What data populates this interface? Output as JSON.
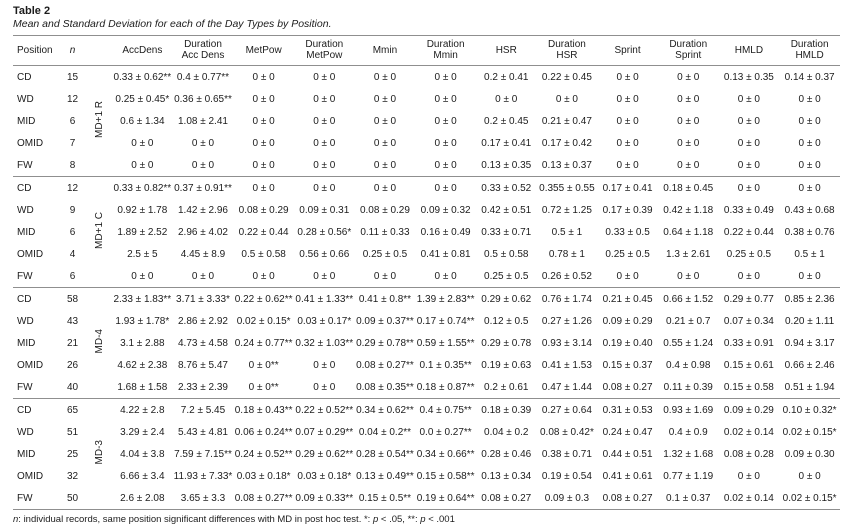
{
  "page": {
    "label": "Table 2",
    "caption": "Mean and Standard Deviation for each of the Day Types by Position."
  },
  "footnote": {
    "n": "n",
    "part1": ": individual records, same position significant differences with MD in post hoc test. *: ",
    "p1": "p",
    "part2": " < .05, **: ",
    "p2": "p",
    "part3": " < .001"
  },
  "table": {
    "columns": [
      "Position",
      "n",
      "",
      "AccDens",
      "Duration\nAcc Dens",
      "MetPow",
      "Duration\nMetPow",
      "Mmin",
      "Duration\nMmin",
      "HSR",
      "Duration\nHSR",
      "Sprint",
      "Duration\nSprint",
      "HMLD",
      "Duration\nHMLD"
    ],
    "groups": [
      {
        "name": "MD+1 R",
        "rows": [
          {
            "position": "CD",
            "n": "15",
            "values": [
              "0.33 ± 0.62**",
              "0.4 ± 0.77**",
              "0 ± 0",
              "0 ± 0",
              "0 ± 0",
              "0 ± 0",
              "0.2 ± 0.41",
              "0.22 ± 0.45",
              "0 ± 0",
              "0 ± 0",
              "0.13 ± 0.35",
              "0.14 ± 0.37"
            ]
          },
          {
            "position": "WD",
            "n": "12",
            "values": [
              "0.25 ± 0.45*",
              "0.36 ± 0.65**",
              "0 ± 0",
              "0 ± 0",
              "0 ± 0",
              "0 ± 0",
              "0 ± 0",
              "0 ± 0",
              "0 ± 0",
              "0 ± 0",
              "0 ± 0",
              "0 ± 0"
            ]
          },
          {
            "position": "MID",
            "n": "6",
            "values": [
              "0.6 ± 1.34",
              "1.08 ± 2.41",
              "0 ± 0",
              "0 ± 0",
              "0 ± 0",
              "0 ± 0",
              "0.2 ± 0.45",
              "0.21 ± 0.47",
              "0 ± 0",
              "0 ± 0",
              "0 ± 0",
              "0 ± 0"
            ]
          },
          {
            "position": "OMID",
            "n": "7",
            "values": [
              "0 ± 0",
              "0 ± 0",
              "0 ± 0",
              "0 ± 0",
              "0 ± 0",
              "0 ± 0",
              "0.17 ± 0.41",
              "0.17 ± 0.42",
              "0 ± 0",
              "0 ± 0",
              "0 ± 0",
              "0 ± 0"
            ]
          },
          {
            "position": "FW",
            "n": "8",
            "values": [
              "0 ± 0",
              "0 ± 0",
              "0 ± 0",
              "0 ± 0",
              "0 ± 0",
              "0 ± 0",
              "0.13 ± 0.35",
              "0.13 ± 0.37",
              "0 ± 0",
              "0 ± 0",
              "0 ± 0",
              "0 ± 0"
            ]
          }
        ]
      },
      {
        "name": "MD+1 C",
        "rows": [
          {
            "position": "CD",
            "n": "12",
            "values": [
              "0.33 ± 0.82**",
              "0.37 ± 0.91**",
              "0 ± 0",
              "0 ± 0",
              "0 ± 0",
              "0 ± 0",
              "0.33 ± 0.52",
              "0.355 ± 0.55",
              "0.17 ± 0.41",
              "0.18 ± 0.45",
              "0 ± 0",
              "0 ± 0"
            ]
          },
          {
            "position": "WD",
            "n": "9",
            "values": [
              "0.92 ± 1.78",
              "1.42 ± 2.96",
              "0.08 ± 0.29",
              "0.09 ± 0.31",
              "0.08 ± 0.29",
              "0.09 ± 0.32",
              "0.42 ± 0.51",
              "0.72 ± 1.25",
              "0.17 ± 0.39",
              "0.42 ± 1.18",
              "0.33 ± 0.49",
              "0.43 ± 0.68"
            ]
          },
          {
            "position": "MID",
            "n": "6",
            "values": [
              "1.89 ± 2.52",
              "2.96 ± 4.02",
              "0.22 ± 0.44",
              "0.28 ± 0.56*",
              "0.11 ± 0.33",
              "0.16 ± 0.49",
              "0.33 ± 0.71",
              "0.5 ± 1",
              "0.33 ± 0.5",
              "0.64 ± 1.18",
              "0.22 ± 0.44",
              "0.38 ± 0.76"
            ]
          },
          {
            "position": "OMID",
            "n": "4",
            "values": [
              "2.5 ± 5",
              "4.45 ± 8.9",
              "0.5 ± 0.58",
              "0.56 ± 0.66",
              "0.25 ± 0.5",
              "0.41 ± 0.81",
              "0.5 ± 0.58",
              "0.78 ± 1",
              "0.25 ± 0.5",
              "1.3 ± 2.61",
              "0.25 ± 0.5",
              "0.5 ± 1"
            ]
          },
          {
            "position": "FW",
            "n": "6",
            "values": [
              "0 ± 0",
              "0 ± 0",
              "0 ± 0",
              "0 ± 0",
              "0 ± 0",
              "0 ± 0",
              "0.25 ± 0.5",
              "0.26 ± 0.52",
              "0 ± 0",
              "0 ± 0",
              "0 ± 0",
              "0 ± 0"
            ]
          }
        ]
      },
      {
        "name": "MD-4",
        "rows": [
          {
            "position": "CD",
            "n": "58",
            "values": [
              "2.33 ± 1.83**",
              "3.71 ± 3.33*",
              "0.22 ± 0.62**",
              "0.41 ± 1.33**",
              "0.41 ± 0.8**",
              "1.39 ± 2.83**",
              "0.29 ± 0.62",
              "0.76 ± 1.74",
              "0.21 ± 0.45",
              "0.66 ± 1.52",
              "0.29 ± 0.77",
              "0.85 ± 2.36"
            ]
          },
          {
            "position": "WD",
            "n": "43",
            "values": [
              "1.93 ± 1.78*",
              "2.86 ± 2.92",
              "0.02 ± 0.15*",
              "0.03 ± 0.17*",
              "0.09 ± 0.37**",
              "0.17 ± 0.74**",
              "0.12 ± 0.5",
              "0.27 ± 1.26",
              "0.09 ± 0.29",
              "0.21 ± 0.7",
              "0.07 ± 0.34",
              "0.20 ± 1.11"
            ]
          },
          {
            "position": "MID",
            "n": "21",
            "values": [
              "3.1 ± 2.88",
              "4.73 ± 4.58",
              "0.24 ± 0.77**",
              "0.32 ± 1.03**",
              "0.29 ± 0.78**",
              "0.59 ± 1.55**",
              "0.29 ± 0.78",
              "0.93 ± 3.14",
              "0.19 ± 0.40",
              "0.55 ± 1.24",
              "0.33 ± 0.91",
              "0.94 ± 3.17"
            ]
          },
          {
            "position": "OMID",
            "n": "26",
            "values": [
              "4.62 ± 2.38",
              "8.76 ± 5.47",
              "0 ± 0**",
              "0 ± 0",
              "0.08 ± 0.27**",
              "0.1 ± 0.35**",
              "0.19 ± 0.63",
              "0.41 ± 1.53",
              "0.15 ± 0.37",
              "0.4 ± 0.98",
              "0.15 ± 0.61",
              "0.66 ± 2.46"
            ]
          },
          {
            "position": "FW",
            "n": "40",
            "values": [
              "1.68 ± 1.58",
              "2.33 ± 2.39",
              "0 ± 0**",
              "0 ± 0",
              "0.08 ± 0.35**",
              "0.18 ± 0.87**",
              "0.2 ± 0.61",
              "0.47 ± 1.44",
              "0.08 ± 0.27",
              "0.11 ± 0.39",
              "0.15 ± 0.58",
              "0.51 ± 1.94"
            ]
          }
        ]
      },
      {
        "name": "MD-3",
        "rows": [
          {
            "position": "CD",
            "n": "65",
            "values": [
              "4.22 ± 2.8",
              "7.2 ± 5.45",
              "0.18 ± 0.43**",
              "0.22 ± 0.52**",
              "0.34 ± 0.62**",
              "0.4 ± 0.75**",
              "0.18 ± 0.39",
              "0.27 ± 0.64",
              "0.31 ± 0.53",
              "0.93 ± 1.69",
              "0.09 ± 0.29",
              "0.10 ± 0.32*"
            ]
          },
          {
            "position": "WD",
            "n": "51",
            "values": [
              "3.29 ± 2.4",
              "5.43 ± 4.81",
              "0.06 ± 0.24**",
              "0.07 ± 0.29**",
              "0.04 ± 0.2**",
              "0.0 ± 0.27**",
              "0.04 ± 0.2",
              "0.08 ± 0.42*",
              "0.24 ± 0.47",
              "0.4 ± 0.9",
              "0.02 ± 0.14",
              "0.02 ± 0.15*"
            ]
          },
          {
            "position": "MID",
            "n": "25",
            "values": [
              "4.04 ± 3.8",
              "7.59 ± 7.15**",
              "0.24 ± 0.52**",
              "0.29 ± 0.62**",
              "0.28 ± 0.54**",
              "0.34 ± 0.66**",
              "0.28 ± 0.46",
              "0.38 ± 0.71",
              "0.44 ± 0.51",
              "1.32 ± 1.68",
              "0.08 ± 0.28",
              "0.09 ± 0.30"
            ]
          },
          {
            "position": "OMID",
            "n": "32",
            "values": [
              "6.66 ± 3.4",
              "11.93 ± 7.33*",
              "0.03 ± 0.18*",
              "0.03 ± 0.18*",
              "0.13 ± 0.49**",
              "0.15 ± 0.58**",
              "0.13 ± 0.34",
              "0.19 ± 0.54",
              "0.41 ± 0.61",
              "0.77 ± 1.19",
              "0 ± 0",
              "0 ± 0"
            ]
          },
          {
            "position": "FW",
            "n": "50",
            "values": [
              "2.6 ± 2.08",
              "3.65 ± 3.3",
              "0.08 ± 0.27**",
              "0.09 ± 0.33**",
              "0.15 ± 0.5**",
              "0.19 ± 0.64**",
              "0.08 ± 0.27",
              "0.09 ± 0.3",
              "0.08 ± 0.27",
              "0.1 ± 0.37",
              "0.02 ± 0.14",
              "0.02 ± 0.15*"
            ]
          }
        ]
      }
    ]
  }
}
